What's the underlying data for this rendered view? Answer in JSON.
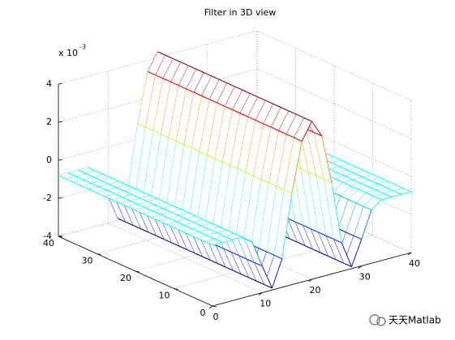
{
  "chart_data": {
    "type": "mesh",
    "title": "Filter in 3D view",
    "zscale_label": "x 10",
    "zscale_exponent": "-3",
    "x": [
      0,
      2,
      4,
      6,
      8,
      10,
      12,
      14,
      16,
      18,
      20,
      22,
      24,
      26,
      28,
      30,
      32,
      34,
      36,
      38,
      40
    ],
    "y": [
      0,
      2,
      4,
      6,
      8,
      10,
      12,
      14,
      16,
      18,
      20,
      22,
      24,
      26,
      28,
      30,
      32,
      34,
      36,
      38,
      40
    ],
    "z": [
      -0.8,
      -0.8,
      -0.8,
      -0.8,
      -1.2,
      -2.6,
      -3.9,
      -2.5,
      0.8,
      3.4,
      4.3,
      3.4,
      0.8,
      -2.5,
      -3.9,
      -2.6,
      -1.2,
      -0.8,
      -0.8,
      -0.8,
      -0.8
    ],
    "xlim": [
      0,
      40
    ],
    "ylim": [
      0,
      40
    ],
    "zlim": [
      -4,
      4
    ],
    "xticks": [
      0,
      10,
      20,
      30,
      40
    ],
    "yticks": [
      0,
      10,
      20,
      30,
      40
    ],
    "zticks": [
      -4,
      -2,
      0,
      2,
      4
    ],
    "colormap": "jet",
    "grid": true
  },
  "watermark": "天天Matlab"
}
